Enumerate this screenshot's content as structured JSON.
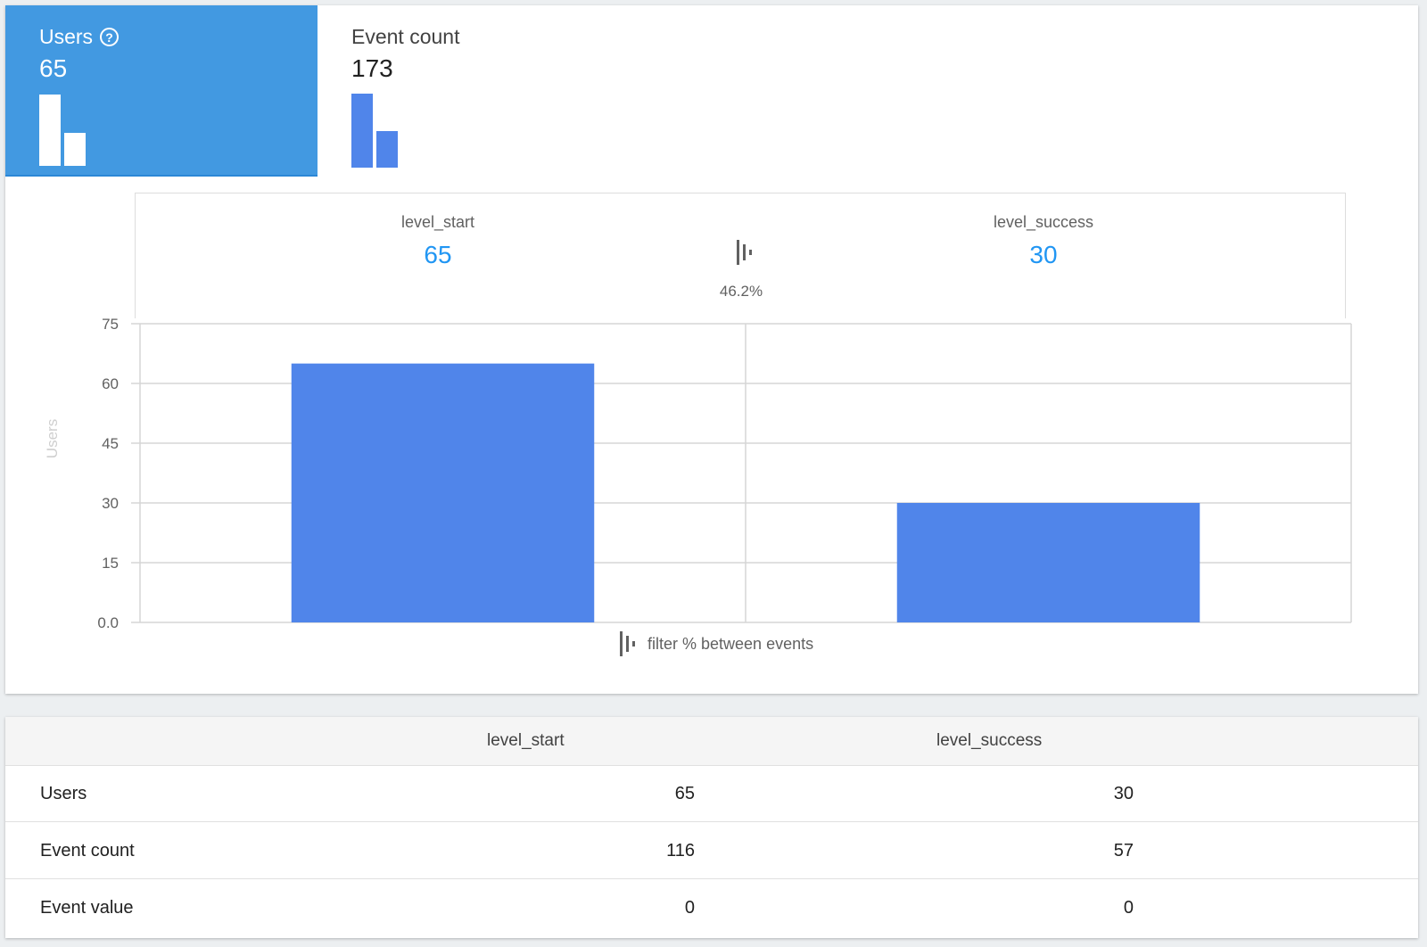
{
  "metrics_tabs": [
    {
      "label": "Users",
      "value": "65",
      "selected": true,
      "help_icon": "help-circle-icon"
    },
    {
      "label": "Event count",
      "value": "173",
      "selected": false
    }
  ],
  "funnel": {
    "steps": [
      {
        "name": "level_start",
        "count": "65"
      },
      {
        "name": "level_success",
        "count": "30"
      }
    ],
    "conversion": "46.2%",
    "filter_icon": "funnel-filter-icon",
    "legend_label": "filter % between events"
  },
  "colors": {
    "accent": "#4299e1",
    "bar": "#5085ea",
    "value": "#2196f3"
  },
  "chart_data": {
    "type": "bar",
    "categories": [
      "level_start",
      "level_success"
    ],
    "values": [
      65,
      30
    ],
    "ylabel": "Users",
    "ylim": [
      0,
      75
    ],
    "yticks": [
      "0.0",
      "15",
      "30",
      "45",
      "60",
      "75"
    ],
    "grid": true
  },
  "table": {
    "columns": [
      "",
      "level_start",
      "level_success"
    ],
    "rows": [
      {
        "label": "Users",
        "values": [
          "65",
          "30"
        ]
      },
      {
        "label": "Event count",
        "values": [
          "116",
          "57"
        ]
      },
      {
        "label": "Event value",
        "values": [
          "0",
          "0"
        ]
      }
    ]
  }
}
